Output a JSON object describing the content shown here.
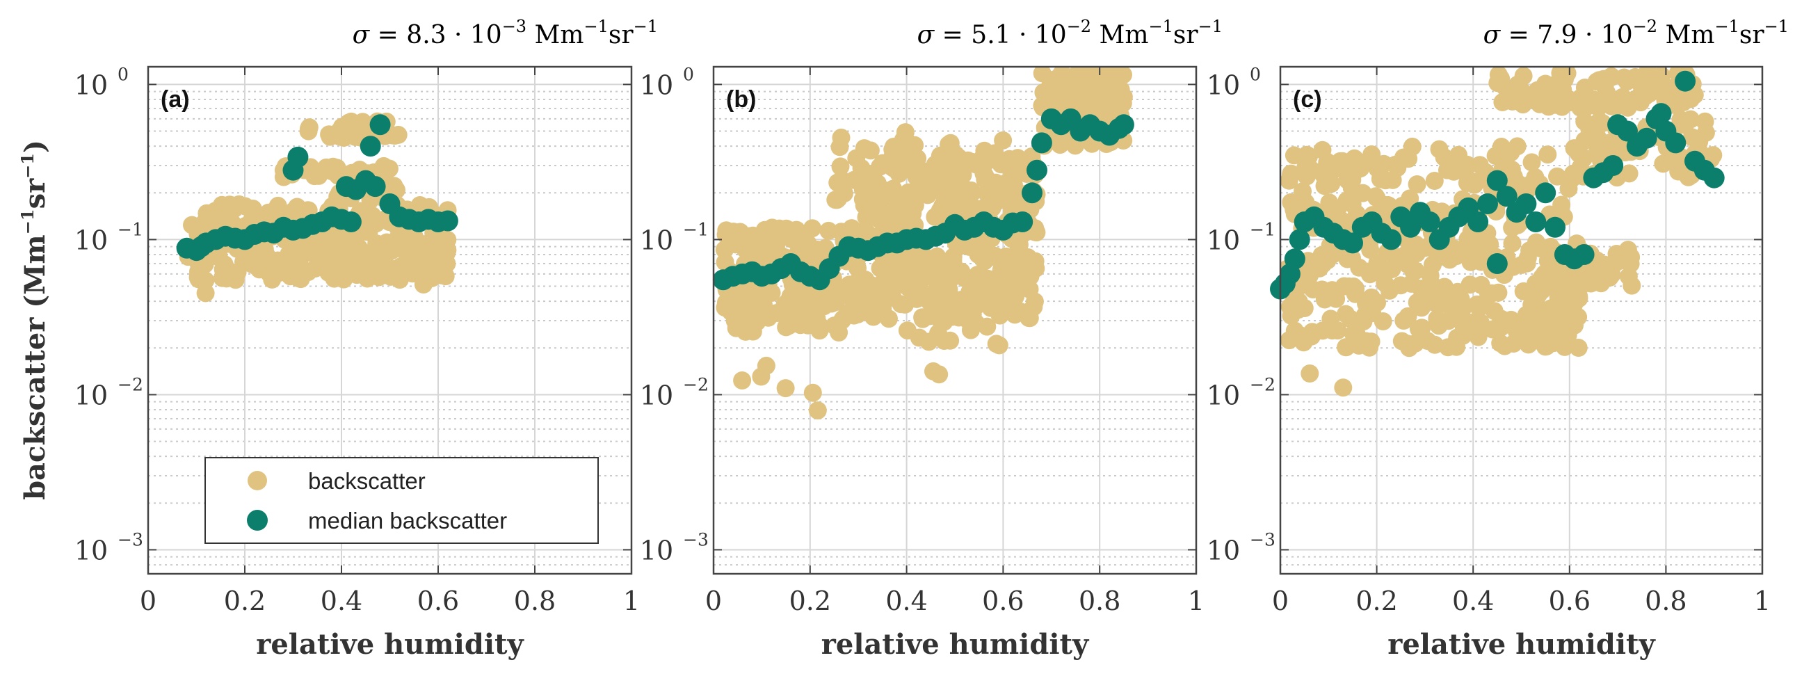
{
  "colors": {
    "backscatter": "#e0c381",
    "median": "#0b7f6c",
    "axis": "#444444",
    "grid_major": "#d6d6d6",
    "grid_minor": "#c9c9c9"
  },
  "shared": {
    "xlabel": "relative humidity",
    "ylabel_text": "backscatter",
    "ylabel_units": "(Mm",
    "ylabel_units_mid": "sr",
    "ylabel_exp": "−1",
    "xlim": [
      0,
      1
    ],
    "ylim": [
      0.0007,
      1.3
    ],
    "yscale": "log",
    "xticks": [
      0,
      0.2,
      0.4,
      0.6,
      0.8,
      1
    ],
    "xtick_labels": [
      "0",
      "0.2",
      "0.4",
      "0.6",
      "0.8",
      "1"
    ],
    "ytick_bases": [
      "10",
      "10",
      "10",
      "10"
    ],
    "ytick_exps": [
      "0",
      "−1",
      "−2",
      "−3"
    ],
    "ytick_values": [
      1,
      0.1,
      0.01,
      0.001
    ]
  },
  "legend": {
    "location": "lower-left of panel (a)",
    "entries": [
      {
        "label": "backscatter"
      },
      {
        "label": "median backscatter"
      }
    ]
  },
  "chart_data": [
    {
      "type": "scatter",
      "panel": "(a)",
      "title_sigma": "σ",
      "title_value": " = 8.3 · 10",
      "title_exp": "−3",
      "title_unit": " Mm",
      "title_unit_exp": "−1",
      "title_unit2": "sr",
      "title_unit2_exp": "−1",
      "series": [
        {
          "name": "backscatter",
          "clusters": [
            {
              "x": [
                0.09,
                0.62
              ],
              "y": [
                0.055,
                0.17
              ],
              "n": 260
            },
            {
              "x": [
                0.08,
                0.12
              ],
              "y": [
                0.04,
                0.09
              ],
              "n": 10
            },
            {
              "x": [
                0.28,
                0.5
              ],
              "y": [
                0.25,
                0.3
              ],
              "n": 40
            },
            {
              "x": [
                0.33,
                0.52
              ],
              "y": [
                0.45,
                0.58
              ],
              "n": 40
            },
            {
              "x": [
                0.38,
                0.52
              ],
              "y": [
                0.18,
                0.25
              ],
              "n": 25
            },
            {
              "x": [
                0.48,
                0.58
              ],
              "y": [
                0.05,
                0.11
              ],
              "n": 12
            }
          ]
        },
        {
          "name": "median backscatter",
          "points": [
            [
              0.08,
              0.088
            ],
            [
              0.1,
              0.085
            ],
            [
              0.11,
              0.09
            ],
            [
              0.12,
              0.095
            ],
            [
              0.14,
              0.1
            ],
            [
              0.16,
              0.105
            ],
            [
              0.18,
              0.102
            ],
            [
              0.2,
              0.1
            ],
            [
              0.22,
              0.108
            ],
            [
              0.24,
              0.112
            ],
            [
              0.26,
              0.11
            ],
            [
              0.28,
              0.12
            ],
            [
              0.3,
              0.115
            ],
            [
              0.32,
              0.118
            ],
            [
              0.34,
              0.125
            ],
            [
              0.36,
              0.13
            ],
            [
              0.38,
              0.14
            ],
            [
              0.4,
              0.135
            ],
            [
              0.42,
              0.13
            ],
            [
              0.3,
              0.28
            ],
            [
              0.31,
              0.34
            ],
            [
              0.41,
              0.22
            ],
            [
              0.43,
              0.21
            ],
            [
              0.45,
              0.24
            ],
            [
              0.47,
              0.22
            ],
            [
              0.46,
              0.4
            ],
            [
              0.48,
              0.55
            ],
            [
              0.5,
              0.17
            ],
            [
              0.52,
              0.14
            ],
            [
              0.54,
              0.135
            ],
            [
              0.56,
              0.13
            ],
            [
              0.58,
              0.135
            ],
            [
              0.6,
              0.13
            ],
            [
              0.62,
              0.132
            ]
          ]
        }
      ]
    },
    {
      "type": "scatter",
      "panel": "(b)",
      "title_sigma": "σ",
      "title_value": " = 5.1 · 10",
      "title_exp": "−2",
      "title_unit": " Mm",
      "title_unit_exp": "−1",
      "title_unit2": "sr",
      "title_unit2_exp": "−1",
      "series": [
        {
          "name": "backscatter",
          "clusters": [
            {
              "x": [
                0.02,
                0.3
              ],
              "y": [
                0.025,
                0.12
              ],
              "n": 200
            },
            {
              "x": [
                0.3,
                0.67
              ],
              "y": [
                0.03,
                0.35
              ],
              "n": 320
            },
            {
              "x": [
                0.25,
                0.6
              ],
              "y": [
                0.15,
                0.5
              ],
              "n": 80
            },
            {
              "x": [
                0.68,
                0.85
              ],
              "y": [
                0.4,
                1.25
              ],
              "n": 150
            },
            {
              "x": [
                0.4,
                0.6
              ],
              "y": [
                0.02,
                0.05
              ],
              "n": 25
            },
            {
              "x": [
                0.02,
                0.48
              ],
              "y": [
                0.0075,
                0.016
              ],
              "n": 8
            }
          ]
        },
        {
          "name": "median backscatter",
          "points": [
            [
              0.02,
              0.055
            ],
            [
              0.04,
              0.058
            ],
            [
              0.06,
              0.06
            ],
            [
              0.08,
              0.062
            ],
            [
              0.1,
              0.058
            ],
            [
              0.12,
              0.06
            ],
            [
              0.14,
              0.065
            ],
            [
              0.16,
              0.07
            ],
            [
              0.18,
              0.062
            ],
            [
              0.2,
              0.058
            ],
            [
              0.22,
              0.055
            ],
            [
              0.24,
              0.065
            ],
            [
              0.26,
              0.078
            ],
            [
              0.28,
              0.09
            ],
            [
              0.3,
              0.088
            ],
            [
              0.32,
              0.085
            ],
            [
              0.34,
              0.09
            ],
            [
              0.36,
              0.095
            ],
            [
              0.38,
              0.095
            ],
            [
              0.4,
              0.1
            ],
            [
              0.42,
              0.102
            ],
            [
              0.44,
              0.1
            ],
            [
              0.46,
              0.105
            ],
            [
              0.48,
              0.11
            ],
            [
              0.5,
              0.125
            ],
            [
              0.52,
              0.115
            ],
            [
              0.54,
              0.12
            ],
            [
              0.56,
              0.13
            ],
            [
              0.58,
              0.12
            ],
            [
              0.6,
              0.115
            ],
            [
              0.62,
              0.128
            ],
            [
              0.64,
              0.13
            ],
            [
              0.66,
              0.2
            ],
            [
              0.67,
              0.28
            ],
            [
              0.68,
              0.42
            ],
            [
              0.7,
              0.6
            ],
            [
              0.72,
              0.55
            ],
            [
              0.74,
              0.6
            ],
            [
              0.76,
              0.5
            ],
            [
              0.78,
              0.55
            ],
            [
              0.8,
              0.5
            ],
            [
              0.82,
              0.47
            ],
            [
              0.84,
              0.52
            ],
            [
              0.85,
              0.55
            ]
          ]
        }
      ]
    },
    {
      "type": "scatter",
      "panel": "(c)",
      "title_sigma": "σ",
      "title_value": " = 7.9 · 10",
      "title_exp": "−2",
      "title_unit": " Mm",
      "title_unit_exp": "−1",
      "title_unit2": "sr",
      "title_unit2_exp": "−1",
      "series": [
        {
          "name": "backscatter",
          "clusters": [
            {
              "x": [
                0.01,
                0.62
              ],
              "y": [
                0.02,
                0.4
              ],
              "n": 420
            },
            {
              "x": [
                0.55,
                0.73
              ],
              "y": [
                0.05,
                0.09
              ],
              "n": 60
            },
            {
              "x": [
                0.5,
                0.62
              ],
              "y": [
                0.02,
                0.045
              ],
              "n": 40
            },
            {
              "x": [
                0.45,
                0.86
              ],
              "y": [
                0.7,
                1.2
              ],
              "n": 110
            },
            {
              "x": [
                0.62,
                0.9
              ],
              "y": [
                0.25,
                0.6
              ],
              "n": 70
            },
            {
              "x": [
                0.03,
                0.14
              ],
              "y": [
                0.011,
                0.015
              ],
              "n": 2
            }
          ]
        },
        {
          "name": "median backscatter",
          "points": [
            [
              0.0,
              0.048
            ],
            [
              0.01,
              0.052
            ],
            [
              0.02,
              0.06
            ],
            [
              0.03,
              0.075
            ],
            [
              0.04,
              0.1
            ],
            [
              0.05,
              0.13
            ],
            [
              0.07,
              0.14
            ],
            [
              0.09,
              0.12
            ],
            [
              0.11,
              0.11
            ],
            [
              0.13,
              0.1
            ],
            [
              0.15,
              0.095
            ],
            [
              0.17,
              0.12
            ],
            [
              0.19,
              0.13
            ],
            [
              0.21,
              0.11
            ],
            [
              0.23,
              0.1
            ],
            [
              0.25,
              0.14
            ],
            [
              0.27,
              0.12
            ],
            [
              0.29,
              0.15
            ],
            [
              0.31,
              0.13
            ],
            [
              0.33,
              0.1
            ],
            [
              0.35,
              0.12
            ],
            [
              0.37,
              0.14
            ],
            [
              0.39,
              0.16
            ],
            [
              0.41,
              0.13
            ],
            [
              0.43,
              0.17
            ],
            [
              0.45,
              0.24
            ],
            [
              0.45,
              0.07
            ],
            [
              0.47,
              0.19
            ],
            [
              0.49,
              0.15
            ],
            [
              0.51,
              0.17
            ],
            [
              0.53,
              0.13
            ],
            [
              0.55,
              0.2
            ],
            [
              0.57,
              0.12
            ],
            [
              0.59,
              0.08
            ],
            [
              0.61,
              0.075
            ],
            [
              0.63,
              0.08
            ],
            [
              0.65,
              0.25
            ],
            [
              0.67,
              0.27
            ],
            [
              0.69,
              0.3
            ],
            [
              0.7,
              0.55
            ],
            [
              0.72,
              0.5
            ],
            [
              0.74,
              0.4
            ],
            [
              0.76,
              0.45
            ],
            [
              0.78,
              0.6
            ],
            [
              0.79,
              0.65
            ],
            [
              0.8,
              0.5
            ],
            [
              0.82,
              0.42
            ],
            [
              0.84,
              1.05
            ],
            [
              0.86,
              0.32
            ],
            [
              0.88,
              0.28
            ],
            [
              0.9,
              0.25
            ]
          ]
        }
      ]
    }
  ]
}
